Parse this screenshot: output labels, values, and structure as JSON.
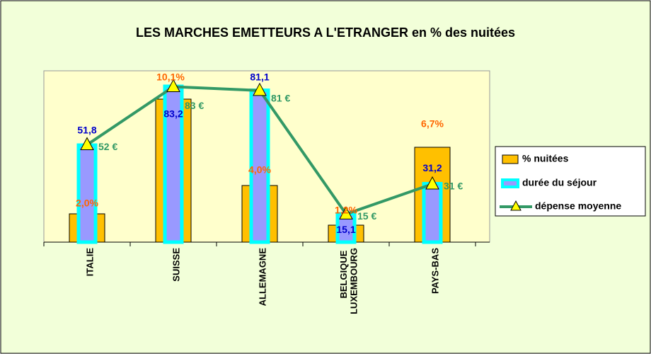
{
  "chart_data": {
    "type": "bar",
    "title": "LES MARCHES EMETTEURS A L'ETRANGER en % des nuitées",
    "categories": [
      "ITALIE",
      "SUISSE",
      "ALLEMAGNE",
      "BELGIQUE LUXEMBOURG",
      "PAYS-BAS"
    ],
    "series": [
      {
        "name": "% nuitées",
        "type": "bar",
        "color": "#ffc000",
        "values": [
          2.0,
          10.1,
          4.0,
          1.2,
          6.7
        ],
        "value_labels": [
          "2,0%",
          "10,1%",
          "4,0%",
          "1,2%",
          "6,7%"
        ],
        "label_color": "#ff6600"
      },
      {
        "name": "durée du séjour",
        "type": "bar",
        "color": "#9999ff",
        "values": [
          51.8,
          83.2,
          81.1,
          15.1,
          31.2
        ],
        "value_labels": [
          "51,8",
          "83,2",
          "81,1",
          "15,1",
          "31,2"
        ],
        "label_color": "#0000cc"
      },
      {
        "name": "dépense moyenne",
        "type": "line",
        "color": "#339966",
        "values": [
          52,
          83,
          81,
          15,
          31
        ],
        "value_labels": [
          "52 €",
          "83 €",
          "81 €",
          "15 €",
          "31 €"
        ],
        "label_color": "#339966"
      }
    ]
  }
}
